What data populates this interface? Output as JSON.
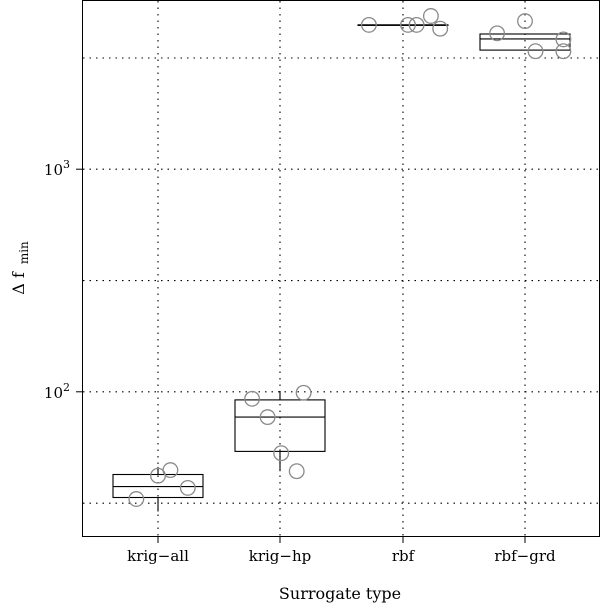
{
  "chart_data": {
    "type": "box",
    "xlabel": "Surrogate type",
    "ylabel": "Δ f",
    "ylabel_subscript": "min",
    "yscale": "log",
    "ylim": [
      22.5,
      5700
    ],
    "y_major_ticks": [
      {
        "value": 100,
        "base": "10",
        "exp": "2"
      },
      {
        "value": 1000,
        "base": "10",
        "exp": "3"
      }
    ],
    "y_grid": [
      31.6,
      100,
      316,
      1000,
      3160
    ],
    "grid": true,
    "categories": [
      "krig−all",
      "krig−hp",
      "rbf",
      "rbf−grd"
    ],
    "boxes": [
      {
        "q1": 33.5,
        "median": 37.5,
        "q3": 42.5,
        "whisker_low": 29,
        "whisker_high": 46
      },
      {
        "q1": 54,
        "median": 77,
        "q3": 92,
        "whisker_low": 44,
        "whisker_high": 101
      },
      {
        "q1": 4450,
        "median": 4450,
        "q3": 4450,
        "whisker_low": 4450,
        "whisker_high": 4450
      },
      {
        "q1": 3430,
        "median": 3850,
        "q3": 4050,
        "whisker_low": 3430,
        "whisker_high": 4050
      }
    ],
    "points": [
      {
        "category": 0,
        "jitter": -0.35,
        "value": 33
      },
      {
        "category": 0,
        "jitter": 0.0,
        "value": 42
      },
      {
        "category": 0,
        "jitter": 0.2,
        "value": 44.5
      },
      {
        "category": 0,
        "jitter": 0.48,
        "value": 37
      },
      {
        "category": 1,
        "jitter": -0.45,
        "value": 93
      },
      {
        "category": 1,
        "jitter": -0.2,
        "value": 77
      },
      {
        "category": 1,
        "jitter": 0.02,
        "value": 53
      },
      {
        "category": 1,
        "jitter": 0.27,
        "value": 44
      },
      {
        "category": 1,
        "jitter": 0.38,
        "value": 99
      },
      {
        "category": 2,
        "jitter": -0.55,
        "value": 4450
      },
      {
        "category": 2,
        "jitter": 0.08,
        "value": 4450
      },
      {
        "category": 2,
        "jitter": 0.22,
        "value": 4450
      },
      {
        "category": 2,
        "jitter": 0.45,
        "value": 4880
      },
      {
        "category": 2,
        "jitter": 0.6,
        "value": 4280
      },
      {
        "category": 3,
        "jitter": -0.45,
        "value": 4080
      },
      {
        "category": 3,
        "jitter": 0.0,
        "value": 4630
      },
      {
        "category": 3,
        "jitter": 0.17,
        "value": 3390
      },
      {
        "category": 3,
        "jitter": 0.62,
        "value": 3830
      },
      {
        "category": 3,
        "jitter": 0.62,
        "value": 3390
      }
    ]
  }
}
